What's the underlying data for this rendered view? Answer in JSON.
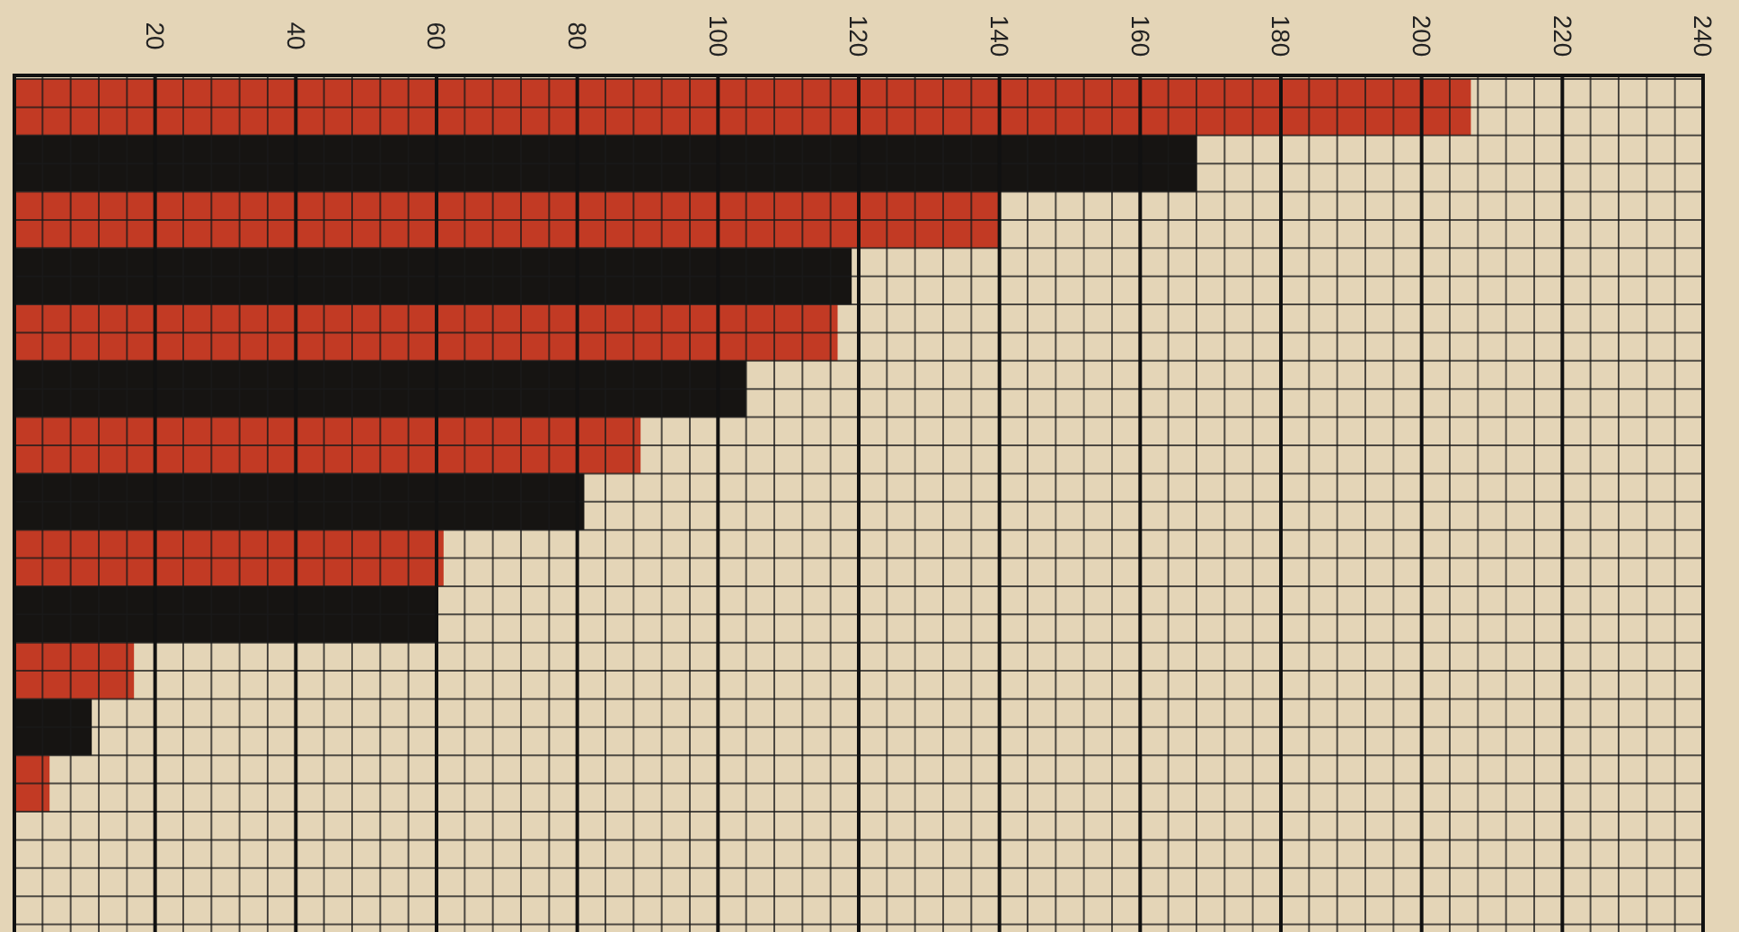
{
  "chart_data": {
    "type": "bar",
    "orientation": "horizontal",
    "categories": [
      null,
      null,
      null,
      null,
      null,
      null,
      null,
      null,
      null,
      null,
      null,
      null,
      null
    ],
    "values": [
      207,
      168,
      140,
      119,
      117,
      104,
      89,
      81,
      61,
      60,
      17,
      11,
      5
    ],
    "colors": [
      "#c23a24",
      "#161412",
      "#c23a24",
      "#161412",
      "#c23a24",
      "#161412",
      "#c23a24",
      "#161412",
      "#c23a24",
      "#161412",
      "#c23a24",
      "#161412",
      "#c23a24"
    ],
    "xlim": [
      0,
      240
    ],
    "xticks": [
      20,
      40,
      60,
      80,
      100,
      120,
      140,
      160,
      180,
      200,
      220,
      240
    ],
    "grid": true
  }
}
